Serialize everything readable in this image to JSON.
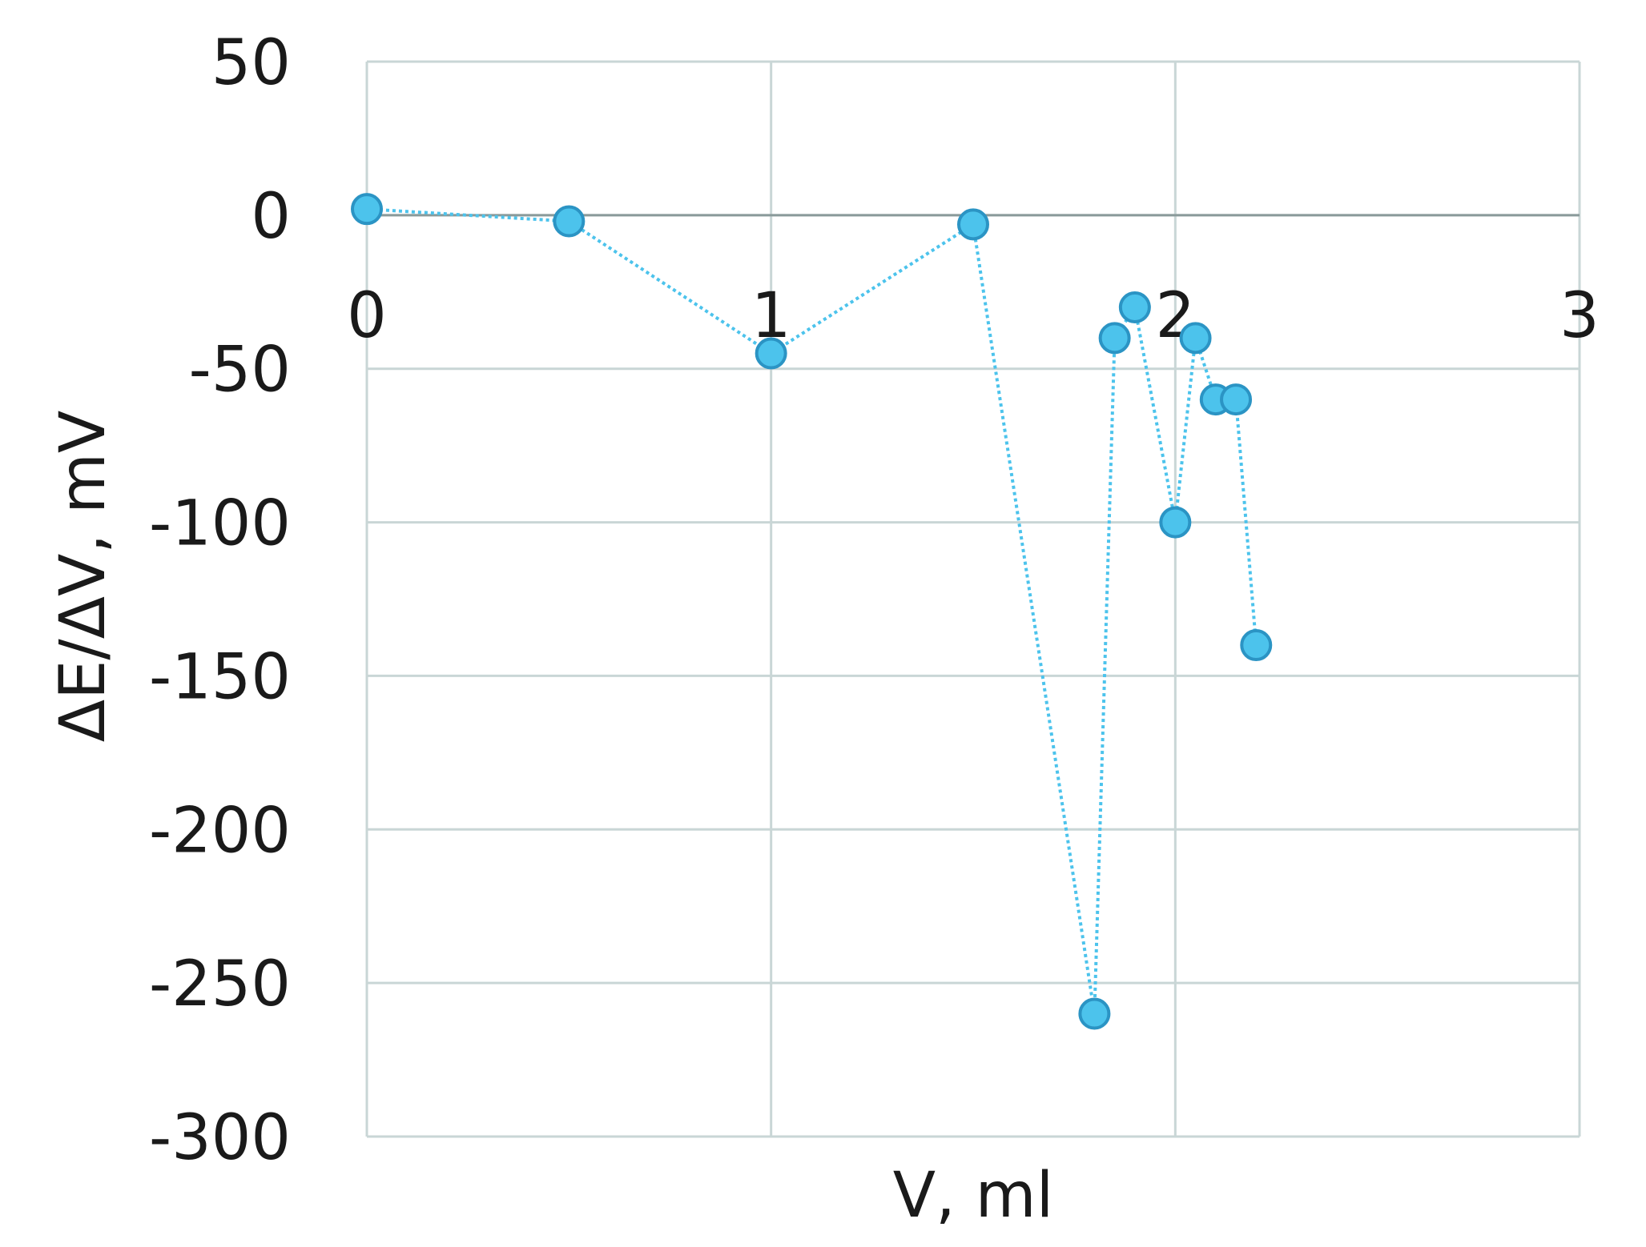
{
  "chart_data": {
    "type": "scatter",
    "x_label": "V, ml",
    "y_label": "ΔE/ΔV, mV",
    "x": [
      0,
      0.5,
      1,
      1.5,
      1.8,
      1.85,
      1.9,
      2.0,
      2.05,
      2.1,
      2.15,
      2.2
    ],
    "series": [
      {
        "color": "#4cc3ec",
        "values": [
          2,
          -2,
          -45,
          -3,
          -260,
          -40,
          -30,
          -100,
          -40,
          -60,
          -60,
          -140
        ]
      }
    ],
    "xlim": [
      0,
      3
    ],
    "xticks": [
      0,
      1,
      2,
      3
    ],
    "ylim": [
      -300,
      50
    ],
    "yticks": [
      -300,
      -250,
      -200,
      -150,
      -100,
      -50,
      0,
      50
    ],
    "grid": true
  }
}
